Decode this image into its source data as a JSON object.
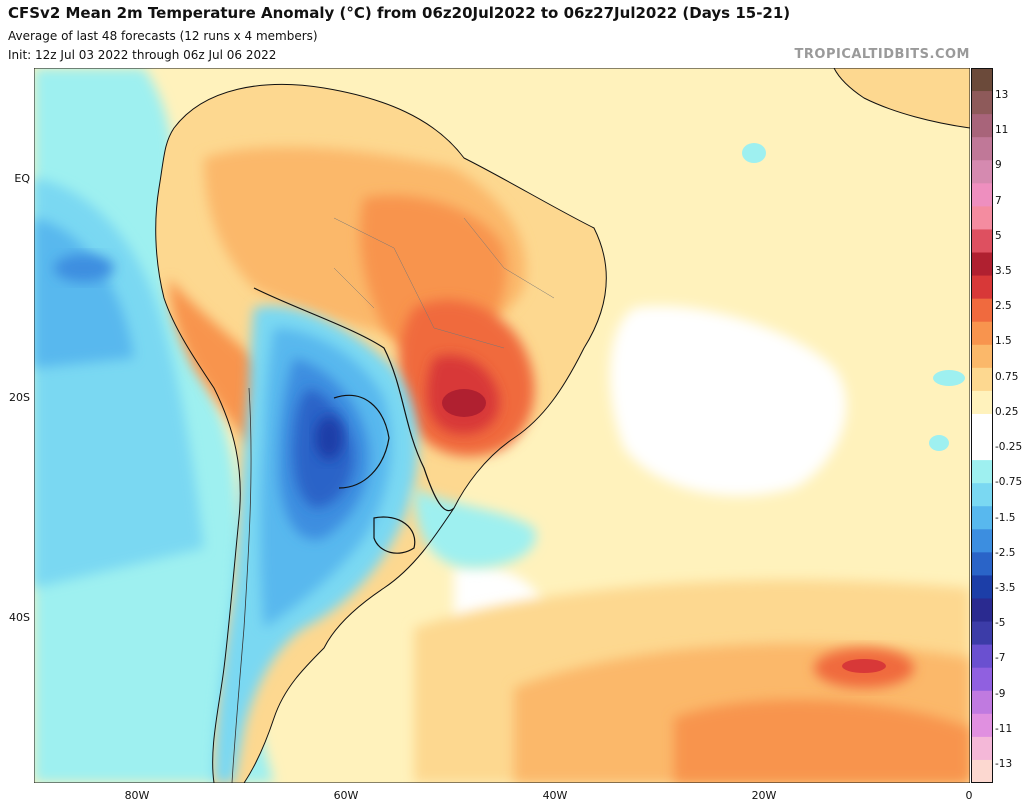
{
  "header": {
    "title": "CFSv2 Mean 2m Temperature Anomaly (°C) from 06z20Jul2022 to 06z27Jul2022 (Days 15-21)",
    "subtitle": "Average of last 48 forecasts (12 runs x 4 members)",
    "init": "Init: 12z Jul 03 2022 through 06z Jul 06 2022",
    "brand": "TROPICALTIDBITS.COM"
  },
  "axes": {
    "lat_labels": [
      "EQ",
      "20S",
      "40S"
    ],
    "lon_labels": [
      "80W",
      "60W",
      "40W",
      "20W",
      "0"
    ]
  },
  "colorbar": {
    "labels": [
      "13",
      "11",
      "9",
      "7",
      "5",
      "3.5",
      "2.5",
      "1.5",
      "0.75",
      "0.25",
      "-0.25",
      "-0.75",
      "-1.5",
      "-2.5",
      "-3.5",
      "-5",
      "-7",
      "-9",
      "-11",
      "-13"
    ],
    "colors": [
      "#6b4a3a",
      "#8e5a5a",
      "#a8647a",
      "#c07898",
      "#d58ab0",
      "#ee8fbf",
      "#f48ca0",
      "#de5060",
      "#b02030",
      "#d83838",
      "#f06a3e",
      "#f8944e",
      "#fbb86a",
      "#fdd890",
      "#fff2bc",
      "#ffffff",
      "#ffffff",
      "#9ef0f0",
      "#7ad8f2",
      "#58b8ee",
      "#3c8ee0",
      "#2a64c8",
      "#1c3ea8",
      "#2a2a90",
      "#3c3ca8",
      "#6a50d0",
      "#9060e0",
      "#c07ae0",
      "#e090e0",
      "#f4b8d8",
      "#fcd8d0"
    ]
  },
  "map_colors": {
    "ocean_base": "#fff2bc",
    "warm_light": "#fdd890",
    "warm_mid": "#fbb86a",
    "warm_orange": "#f8944e",
    "warm_red": "#d83838",
    "warm_dark": "#b02030",
    "cool_cyan": "#9ef0f0",
    "cool_light": "#7ad8f2",
    "cool_mid": "#58b8ee",
    "cool_blue": "#3c8ee0",
    "cool_dark": "#2a64c8",
    "cool_deep": "#1c3ea8"
  }
}
